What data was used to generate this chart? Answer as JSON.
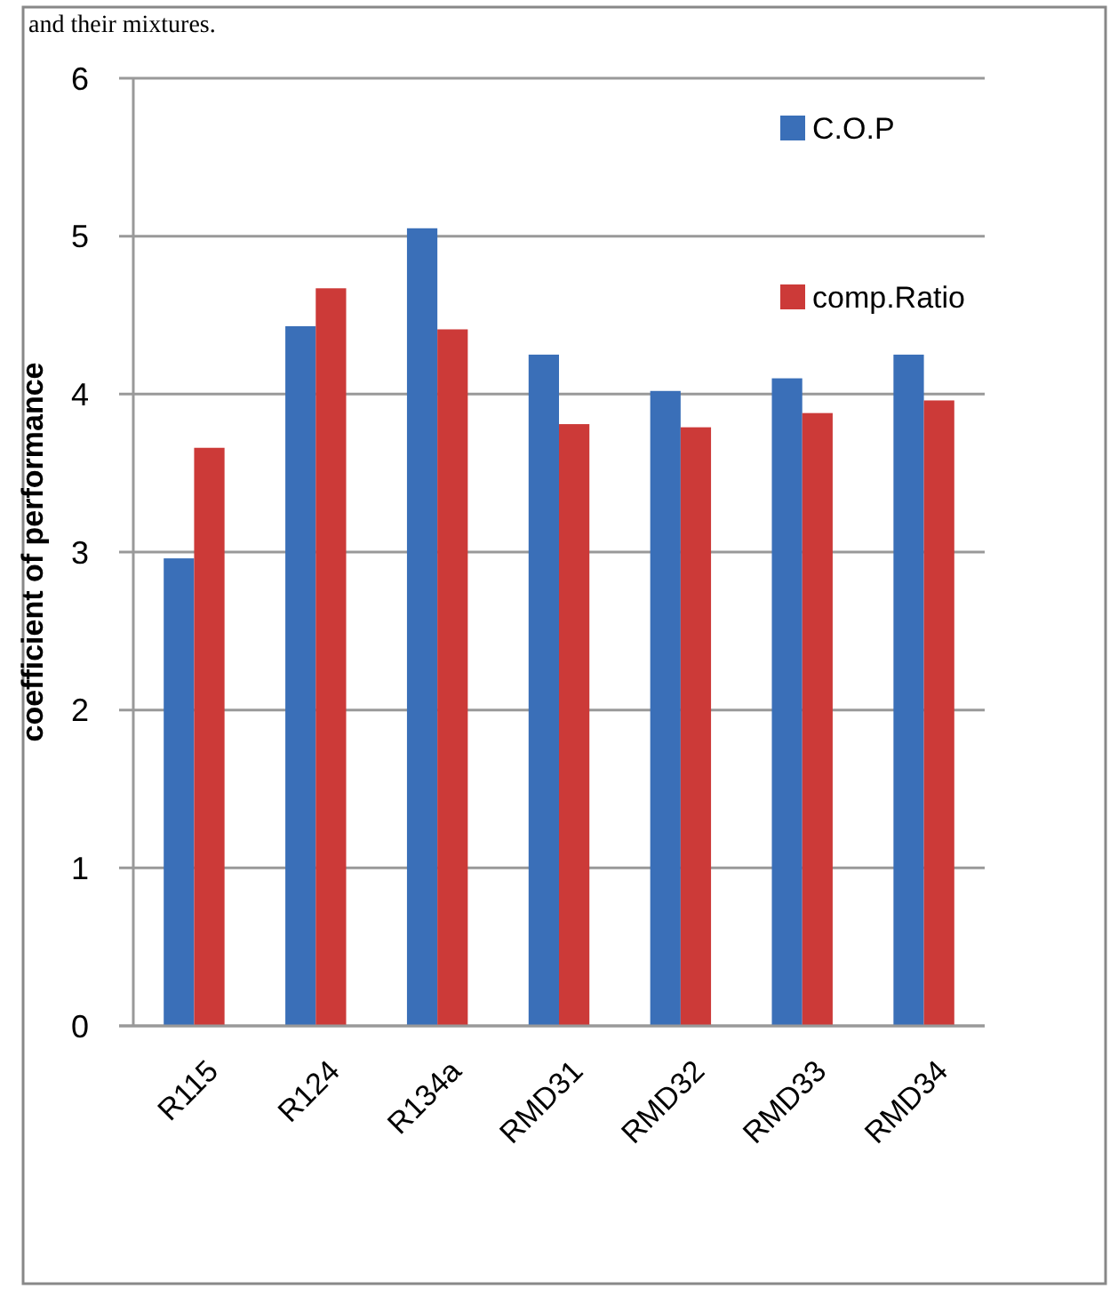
{
  "chart_data": {
    "type": "bar",
    "ylabel": "coefficient of performance",
    "annotations": [
      "and their mixtures."
    ],
    "categories": [
      "R115",
      "R124",
      "R134a",
      "RMD31",
      "RMD32",
      "RMD33",
      "RMD34"
    ],
    "series": [
      {
        "name": "C.O.P",
        "color": "#3a6fb8",
        "values": [
          2.96,
          4.43,
          5.05,
          4.25,
          4.02,
          4.1,
          4.25
        ]
      },
      {
        "name": "comp.Ratio",
        "color": "#cc3a38",
        "values": [
          3.66,
          4.67,
          4.41,
          3.81,
          3.79,
          3.88,
          3.96
        ]
      }
    ],
    "ylim": [
      0,
      6
    ],
    "yticks": [
      0,
      1,
      2,
      3,
      4,
      5,
      6
    ],
    "grid": "y",
    "legend": "top right"
  }
}
